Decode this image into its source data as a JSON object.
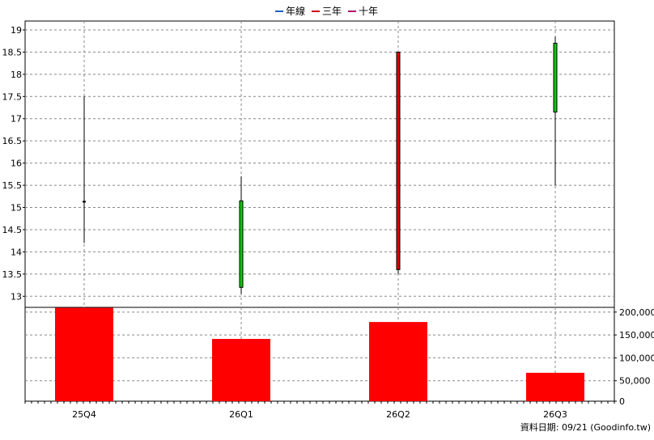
{
  "chart_data": {
    "type": "candlestick",
    "legend": {
      "position": "top",
      "items": [
        {
          "label": "年線",
          "color": "#1f5fc7"
        },
        {
          "label": "三年",
          "color": "#cc0000"
        },
        {
          "label": "十年",
          "color": "#b0006a"
        }
      ]
    },
    "categories": [
      "25Q4",
      "26Q1",
      "26Q2",
      "26Q3"
    ],
    "price": {
      "ylim": [
        12.75,
        19.2
      ],
      "ticks": [
        "19",
        "18.5",
        "18",
        "17.5",
        "17",
        "16.5",
        "16",
        "15.5",
        "15",
        "14.5",
        "14",
        "13.5",
        "13"
      ],
      "grid": true,
      "candles": [
        {
          "open": 15.13,
          "close": 15.13,
          "high": 17.5,
          "low": 14.2,
          "color": "#000000"
        },
        {
          "open": 13.2,
          "close": 15.15,
          "high": 15.7,
          "low": 13.05,
          "color": "#00cc00"
        },
        {
          "open": 18.5,
          "close": 13.6,
          "high": 18.5,
          "low": 13.5,
          "color": "#dd0000"
        },
        {
          "open": 17.15,
          "close": 18.7,
          "high": 18.85,
          "low": 15.5,
          "color": "#00cc00"
        }
      ]
    },
    "volume": {
      "ylim": [
        0,
        205000
      ],
      "ticks": [
        "200,000",
        "150,000",
        "100,000",
        "50,000",
        "0"
      ],
      "values": [
        204000,
        136000,
        173000,
        62000
      ],
      "color": "#ff0000"
    }
  },
  "footer": {
    "date_note": "資料日期: 09/21  (Goodinfo.tw)"
  }
}
